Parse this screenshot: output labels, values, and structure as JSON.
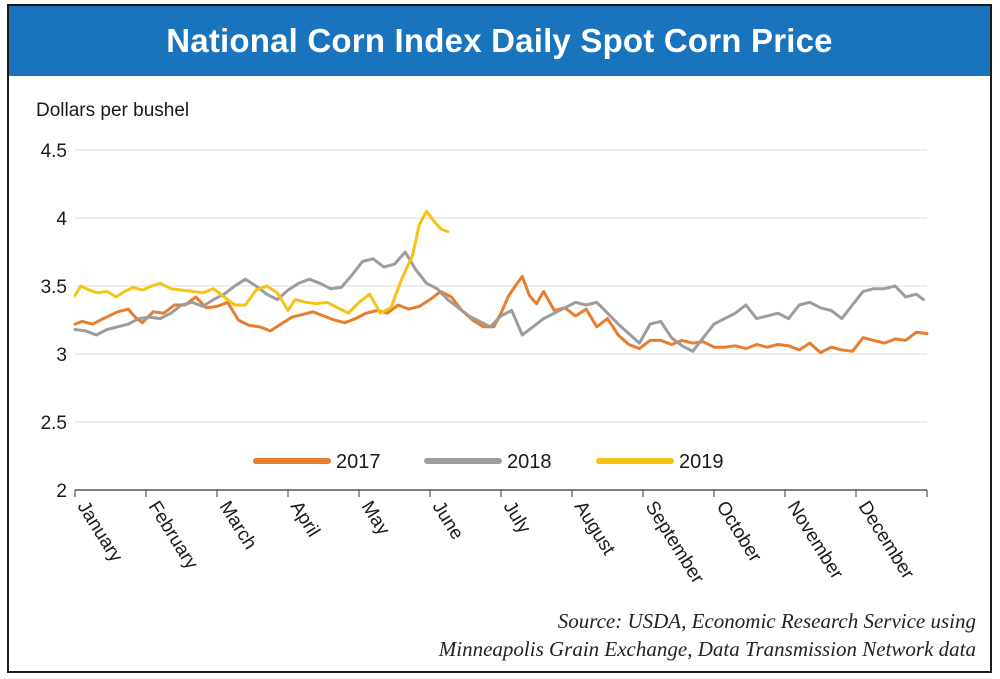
{
  "header": {
    "title": "National Corn Index Daily Spot Corn Price"
  },
  "source": {
    "line1": "Source: USDA, Economic Research Service using",
    "line2": "Minneapolis Grain Exchange, Data Transmission Network data"
  },
  "colors": {
    "banner": "#1a73bd",
    "axis": "#555555",
    "grid": "#dcdcdc"
  },
  "chart_data": {
    "type": "line",
    "title": "National Corn Index Daily Spot Corn Price",
    "ylabel": "Dollars per bushel",
    "xlabel": "",
    "ylim": [
      2,
      4.5
    ],
    "yticks": [
      2,
      2.5,
      3,
      3.5,
      4,
      4.5
    ],
    "ytick_labels": [
      "2",
      "2.5",
      "3",
      "3.5",
      "4",
      "4.5"
    ],
    "xlim": [
      0,
      12
    ],
    "x_unit": "month of year (0 = start of January)",
    "categories": [
      "January",
      "February",
      "March",
      "April",
      "May",
      "June",
      "July",
      "August",
      "September",
      "October",
      "November",
      "December"
    ],
    "grid": "horizontal",
    "legend": {
      "position": "bottom-center",
      "entries": [
        "2017",
        "2018",
        "2019"
      ]
    },
    "series": [
      {
        "name": "2017",
        "color": "#e87d2e",
        "x": [
          0,
          0.1,
          0.25,
          0.4,
          0.6,
          0.75,
          0.85,
          0.95,
          1.1,
          1.25,
          1.4,
          1.55,
          1.7,
          1.85,
          2.0,
          2.15,
          2.3,
          2.45,
          2.6,
          2.75,
          2.9,
          3.05,
          3.2,
          3.35,
          3.5,
          3.65,
          3.8,
          3.95,
          4.1,
          4.25,
          4.4,
          4.55,
          4.7,
          4.85,
          5.0,
          5.15,
          5.3,
          5.45,
          5.6,
          5.75,
          5.9,
          6.0,
          6.1,
          6.2,
          6.3,
          6.4,
          6.5,
          6.6,
          6.75,
          6.9,
          7.05,
          7.2,
          7.35,
          7.5,
          7.65,
          7.8,
          7.95,
          8.1,
          8.25,
          8.4,
          8.55,
          8.7,
          8.85,
          9.0,
          9.15,
          9.3,
          9.45,
          9.6,
          9.75,
          9.9,
          10.05,
          10.2,
          10.35,
          10.5,
          10.65,
          10.8,
          10.95,
          11.1,
          11.25,
          11.4,
          11.55,
          11.7,
          11.85,
          12.0
        ],
        "values": [
          3.22,
          3.24,
          3.22,
          3.26,
          3.31,
          3.33,
          3.27,
          3.23,
          3.31,
          3.3,
          3.36,
          3.36,
          3.42,
          3.34,
          3.35,
          3.38,
          3.25,
          3.21,
          3.2,
          3.17,
          3.22,
          3.27,
          3.29,
          3.31,
          3.28,
          3.25,
          3.23,
          3.26,
          3.3,
          3.32,
          3.3,
          3.36,
          3.33,
          3.35,
          3.4,
          3.46,
          3.42,
          3.32,
          3.25,
          3.2,
          3.2,
          3.3,
          3.42,
          3.5,
          3.57,
          3.43,
          3.37,
          3.46,
          3.32,
          3.34,
          3.28,
          3.33,
          3.2,
          3.26,
          3.14,
          3.07,
          3.04,
          3.1,
          3.1,
          3.07,
          3.1,
          3.08,
          3.09,
          3.05,
          3.05,
          3.06,
          3.04,
          3.07,
          3.05,
          3.07,
          3.06,
          3.03,
          3.08,
          3.01,
          3.05,
          3.03,
          3.02,
          3.12,
          3.1,
          3.08,
          3.11,
          3.1,
          3.16,
          3.15
        ]
      },
      {
        "name": "2018",
        "color": "#9d9d9d",
        "x": [
          0,
          0.15,
          0.3,
          0.45,
          0.6,
          0.75,
          0.9,
          1.05,
          1.2,
          1.35,
          1.5,
          1.65,
          1.8,
          1.95,
          2.1,
          2.25,
          2.4,
          2.55,
          2.7,
          2.85,
          3.0,
          3.15,
          3.3,
          3.45,
          3.6,
          3.75,
          3.9,
          4.05,
          4.2,
          4.35,
          4.5,
          4.65,
          4.8,
          4.95,
          5.1,
          5.25,
          5.4,
          5.55,
          5.7,
          5.85,
          6.0,
          6.15,
          6.3,
          6.45,
          6.6,
          6.75,
          6.9,
          7.05,
          7.2,
          7.35,
          7.5,
          7.65,
          7.8,
          7.95,
          8.1,
          8.25,
          8.4,
          8.55,
          8.7,
          8.85,
          9.0,
          9.15,
          9.3,
          9.45,
          9.6,
          9.75,
          9.9,
          10.05,
          10.2,
          10.35,
          10.5,
          10.65,
          10.8,
          10.95,
          11.1,
          11.25,
          11.4,
          11.55,
          11.7,
          11.85,
          11.95
        ],
        "values": [
          3.18,
          3.17,
          3.14,
          3.18,
          3.2,
          3.22,
          3.26,
          3.27,
          3.26,
          3.3,
          3.36,
          3.38,
          3.35,
          3.4,
          3.44,
          3.5,
          3.55,
          3.5,
          3.44,
          3.4,
          3.47,
          3.52,
          3.55,
          3.52,
          3.48,
          3.49,
          3.58,
          3.68,
          3.7,
          3.64,
          3.66,
          3.75,
          3.62,
          3.52,
          3.48,
          3.4,
          3.34,
          3.28,
          3.24,
          3.2,
          3.28,
          3.32,
          3.14,
          3.2,
          3.26,
          3.3,
          3.34,
          3.38,
          3.36,
          3.38,
          3.3,
          3.22,
          3.15,
          3.08,
          3.22,
          3.24,
          3.12,
          3.06,
          3.02,
          3.12,
          3.22,
          3.26,
          3.3,
          3.36,
          3.26,
          3.28,
          3.3,
          3.26,
          3.36,
          3.38,
          3.34,
          3.32,
          3.26,
          3.36,
          3.46,
          3.48,
          3.48,
          3.5,
          3.42,
          3.44,
          3.4
        ]
      },
      {
        "name": "2019",
        "color": "#f5c315",
        "x": [
          0,
          0.08,
          0.2,
          0.32,
          0.45,
          0.58,
          0.7,
          0.82,
          0.95,
          1.08,
          1.2,
          1.35,
          1.5,
          1.65,
          1.8,
          1.95,
          2.1,
          2.25,
          2.4,
          2.55,
          2.7,
          2.85,
          3.0,
          3.1,
          3.25,
          3.4,
          3.55,
          3.7,
          3.85,
          4.0,
          4.15,
          4.3,
          4.45,
          4.6,
          4.75,
          4.85,
          4.95,
          5.05,
          5.15,
          5.25
        ],
        "values": [
          3.43,
          3.5,
          3.47,
          3.45,
          3.46,
          3.42,
          3.46,
          3.49,
          3.47,
          3.5,
          3.52,
          3.48,
          3.47,
          3.46,
          3.45,
          3.48,
          3.42,
          3.36,
          3.36,
          3.47,
          3.5,
          3.45,
          3.32,
          3.4,
          3.38,
          3.37,
          3.38,
          3.34,
          3.3,
          3.38,
          3.44,
          3.3,
          3.34,
          3.55,
          3.72,
          3.95,
          4.05,
          3.98,
          3.92,
          3.9
        ]
      }
    ]
  }
}
